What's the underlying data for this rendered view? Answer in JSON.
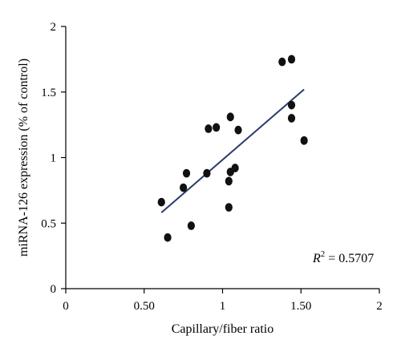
{
  "chart_data": {
    "type": "scatter",
    "xlabel": "Capillary/fiber ratio",
    "ylabel": "miRNA-126 expression (% of control)",
    "xlim": [
      0,
      2
    ],
    "ylim": [
      0,
      2
    ],
    "x_ticks": [
      0,
      0.5,
      1,
      1.5,
      2
    ],
    "x_tick_labels": [
      "0",
      "0.50",
      "1",
      "1.50",
      "2"
    ],
    "y_ticks": [
      0,
      0.5,
      1,
      1.5,
      2
    ],
    "y_tick_labels": [
      "0",
      "0.5",
      "1",
      "1.5",
      "2"
    ],
    "grid": false,
    "points": [
      {
        "x": 0.61,
        "y": 0.66
      },
      {
        "x": 0.65,
        "y": 0.39
      },
      {
        "x": 0.75,
        "y": 0.77
      },
      {
        "x": 0.77,
        "y": 0.88
      },
      {
        "x": 0.8,
        "y": 0.48
      },
      {
        "x": 0.9,
        "y": 0.88
      },
      {
        "x": 0.91,
        "y": 1.22
      },
      {
        "x": 0.96,
        "y": 1.23
      },
      {
        "x": 1.04,
        "y": 0.82
      },
      {
        "x": 1.04,
        "y": 0.62
      },
      {
        "x": 1.05,
        "y": 0.89
      },
      {
        "x": 1.05,
        "y": 1.31
      },
      {
        "x": 1.08,
        "y": 0.92
      },
      {
        "x": 1.1,
        "y": 1.21
      },
      {
        "x": 1.38,
        "y": 1.73
      },
      {
        "x": 1.44,
        "y": 1.75
      },
      {
        "x": 1.44,
        "y": 1.4
      },
      {
        "x": 1.44,
        "y": 1.3
      },
      {
        "x": 1.52,
        "y": 1.13
      }
    ],
    "trendline": {
      "x": [
        0.61,
        1.52
      ],
      "y": [
        0.58,
        1.52
      ]
    },
    "annotation": {
      "label": "R",
      "superscript": "2",
      "value": " = 0.5707"
    },
    "colors": {
      "points": "#111111",
      "trendline": "#2b3a6b",
      "axes": "#000000"
    }
  }
}
